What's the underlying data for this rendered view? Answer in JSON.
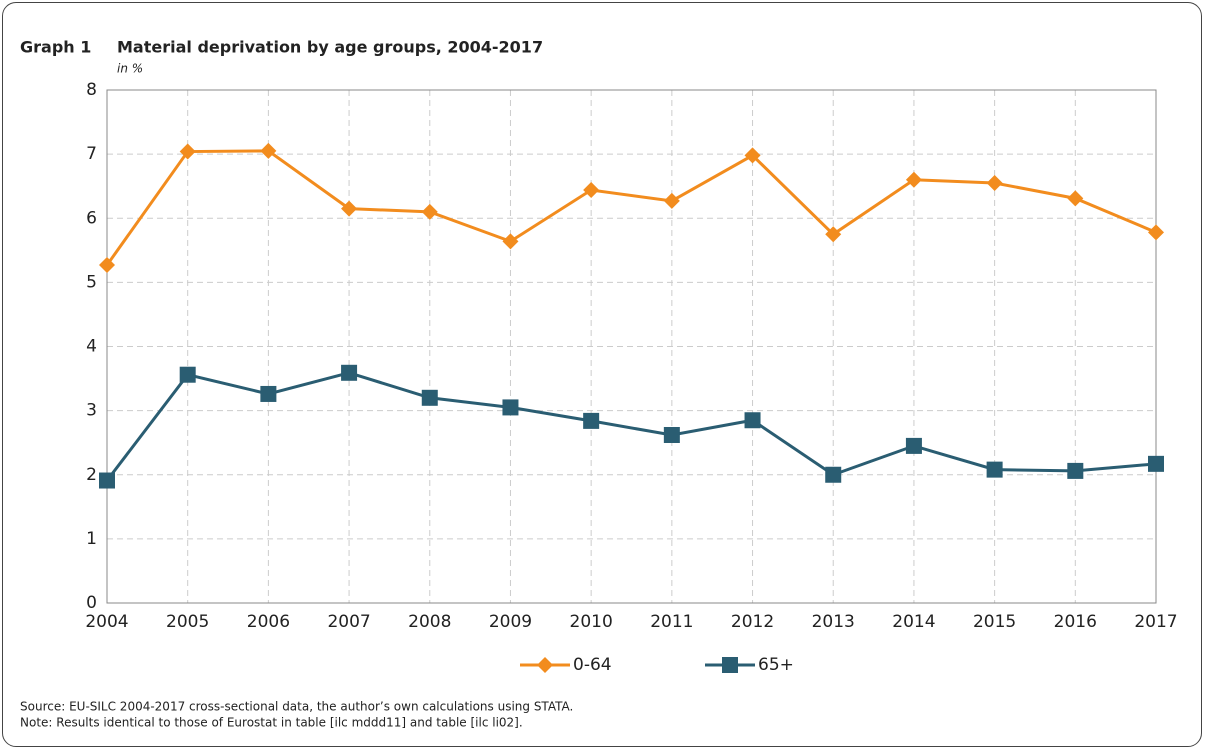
{
  "chart_data": {
    "type": "line",
    "label": "Graph 1",
    "title": "Material deprivation by age groups, 2004-2017",
    "subtitle": "in %",
    "x": [
      2004,
      2005,
      2006,
      2007,
      2008,
      2009,
      2010,
      2011,
      2012,
      2013,
      2014,
      2015,
      2016,
      2017
    ],
    "series": [
      {
        "name": "0-64",
        "color": "#f28c1e",
        "marker": "diamond",
        "values": [
          5.27,
          7.04,
          7.05,
          6.15,
          6.1,
          5.64,
          6.44,
          6.27,
          6.98,
          5.75,
          6.6,
          6.55,
          6.31,
          5.78
        ]
      },
      {
        "name": "65+",
        "color": "#2a5d72",
        "marker": "square",
        "values": [
          1.91,
          3.56,
          3.26,
          3.59,
          3.2,
          3.05,
          2.84,
          2.62,
          2.85,
          2.0,
          2.45,
          2.08,
          2.06,
          2.17
        ]
      }
    ],
    "xlim": [
      2004,
      2017
    ],
    "xticks": [
      2004,
      2005,
      2006,
      2007,
      2008,
      2009,
      2010,
      2011,
      2012,
      2013,
      2014,
      2015,
      2016,
      2017
    ],
    "ylim": [
      0,
      8
    ],
    "yticks": [
      0,
      1,
      2,
      3,
      4,
      5,
      6,
      7,
      8
    ],
    "grid": true,
    "legend": "bottom",
    "source": "Source: EU-SILC 2004-2017 cross-sectional data, the author’s own calculations using STATA.",
    "note": "Note: Results identical to those of Eurostat in table [ilc mddd11] and table [ilc li02]."
  }
}
